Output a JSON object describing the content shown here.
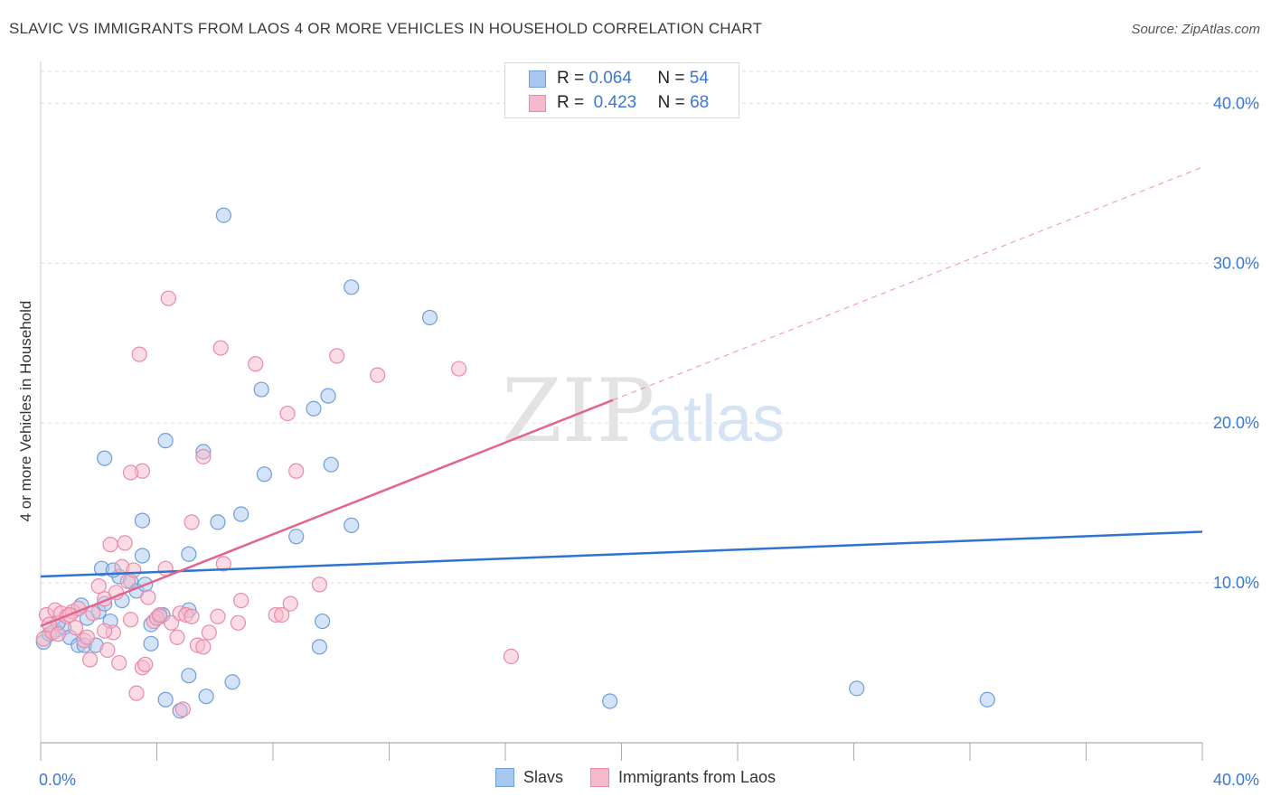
{
  "title": "SLAVIC VS IMMIGRANTS FROM LAOS 4 OR MORE VEHICLES IN HOUSEHOLD CORRELATION CHART",
  "source": "Source: ZipAtlas.com",
  "watermark": {
    "zip": "ZIP",
    "atlas": "atlas"
  },
  "legend_top": [
    {
      "r_label": "R =",
      "r_value": "0.064",
      "n_label": "N =",
      "n_value": "54"
    },
    {
      "r_label": "R =",
      "r_value": "0.423",
      "n_label": "N =",
      "n_value": "68"
    }
  ],
  "colors": {
    "slavs_fill": "#a9c8f0",
    "slavs_stroke": "#6e9fd8",
    "slavs_line": "#2f74cf",
    "laos_fill": "#f7b9cc",
    "laos_stroke": "#e98aa8",
    "laos_line": "#e4648e",
    "axis_text": "#3a78d4",
    "grid": "#dddddd"
  },
  "chart_data": {
    "type": "scatter",
    "title": "SLAVIC VS IMMIGRANTS FROM LAOS 4 OR MORE VEHICLES IN HOUSEHOLD CORRELATION CHART",
    "xlabel": "",
    "ylabel": "4 or more Vehicles in Household",
    "xlim": [
      0,
      40
    ],
    "ylim": [
      0,
      42
    ],
    "x_tick_labels": [
      "0.0%",
      "40.0%"
    ],
    "y_ticks": [
      10,
      20,
      30,
      40
    ],
    "y_tick_labels": [
      "10.0%",
      "20.0%",
      "30.0%",
      "40.0%"
    ],
    "grid": true,
    "legend_position": "top-center",
    "series": [
      {
        "name": "Slavs",
        "r": 0.064,
        "n": 54,
        "trend": {
          "x": [
            0,
            40
          ],
          "y": [
            10.4,
            13.2
          ],
          "dashed_extension": false
        },
        "points": [
          [
            0.1,
            6.3
          ],
          [
            0.3,
            6.8
          ],
          [
            0.5,
            7.0
          ],
          [
            0.8,
            7.2
          ],
          [
            1.0,
            6.6
          ],
          [
            1.3,
            6.1
          ],
          [
            1.4,
            8.6
          ],
          [
            1.6,
            7.8
          ],
          [
            1.5,
            6.1
          ],
          [
            2.0,
            8.2
          ],
          [
            2.2,
            8.7
          ],
          [
            2.4,
            7.6
          ],
          [
            2.7,
            10.4
          ],
          [
            2.8,
            8.9
          ],
          [
            3.1,
            10.1
          ],
          [
            3.8,
            6.2
          ],
          [
            2.1,
            10.9
          ],
          [
            2.5,
            10.8
          ],
          [
            3.3,
            9.5
          ],
          [
            3.6,
            9.9
          ],
          [
            3.8,
            7.4
          ],
          [
            4.2,
            8.0
          ],
          [
            5.1,
            8.3
          ],
          [
            4.3,
            2.7
          ],
          [
            4.8,
            2.0
          ],
          [
            5.1,
            4.2
          ],
          [
            5.7,
            2.9
          ],
          [
            6.6,
            3.8
          ],
          [
            5.1,
            11.8
          ],
          [
            3.5,
            11.7
          ],
          [
            2.2,
            17.8
          ],
          [
            3.5,
            13.9
          ],
          [
            4.3,
            18.9
          ],
          [
            5.6,
            18.2
          ],
          [
            6.1,
            13.8
          ],
          [
            6.9,
            14.3
          ],
          [
            7.6,
            22.1
          ],
          [
            7.7,
            16.8
          ],
          [
            8.8,
            12.9
          ],
          [
            9.4,
            20.9
          ],
          [
            9.9,
            21.7
          ],
          [
            10.0,
            17.4
          ],
          [
            10.7,
            13.6
          ],
          [
            10.7,
            28.5
          ],
          [
            13.4,
            26.6
          ],
          [
            6.3,
            33.0
          ],
          [
            9.6,
            6.0
          ],
          [
            9.7,
            7.6
          ],
          [
            19.6,
            2.6
          ],
          [
            28.1,
            3.4
          ],
          [
            32.6,
            2.7
          ],
          [
            0.6,
            7.5
          ],
          [
            1.9,
            6.1
          ],
          [
            4.1,
            7.9
          ]
        ]
      },
      {
        "name": "Immigrants from Laos",
        "r": 0.423,
        "n": 68,
        "trend": {
          "x": [
            0,
            40
          ],
          "y": [
            7.3,
            36.0
          ],
          "solid_until_x": 19.7,
          "dashed_extension": true
        },
        "points": [
          [
            0.1,
            6.5
          ],
          [
            0.2,
            8.0
          ],
          [
            0.4,
            6.9
          ],
          [
            0.5,
            8.3
          ],
          [
            0.7,
            8.1
          ],
          [
            0.9,
            7.9
          ],
          [
            1.1,
            8.2
          ],
          [
            1.2,
            7.2
          ],
          [
            1.3,
            8.4
          ],
          [
            1.5,
            6.4
          ],
          [
            1.6,
            6.6
          ],
          [
            1.7,
            5.2
          ],
          [
            1.8,
            8.1
          ],
          [
            2.0,
            9.8
          ],
          [
            2.2,
            9.0
          ],
          [
            2.3,
            5.8
          ],
          [
            2.4,
            12.4
          ],
          [
            2.5,
            6.9
          ],
          [
            2.6,
            9.4
          ],
          [
            2.7,
            5.0
          ],
          [
            2.8,
            11.0
          ],
          [
            2.9,
            12.5
          ],
          [
            3.0,
            10.1
          ],
          [
            3.1,
            7.7
          ],
          [
            3.2,
            10.8
          ],
          [
            3.3,
            3.1
          ],
          [
            3.5,
            4.7
          ],
          [
            3.6,
            4.9
          ],
          [
            3.7,
            9.1
          ],
          [
            3.9,
            7.6
          ],
          [
            4.0,
            7.8
          ],
          [
            4.1,
            8.0
          ],
          [
            4.3,
            10.9
          ],
          [
            4.5,
            7.5
          ],
          [
            4.7,
            6.6
          ],
          [
            4.8,
            8.1
          ],
          [
            5.0,
            8.0
          ],
          [
            5.2,
            7.9
          ],
          [
            5.4,
            6.1
          ],
          [
            5.6,
            6.0
          ],
          [
            5.8,
            6.9
          ],
          [
            6.1,
            7.9
          ],
          [
            6.3,
            11.2
          ],
          [
            6.8,
            7.5
          ],
          [
            6.9,
            8.9
          ],
          [
            8.1,
            8.0
          ],
          [
            8.6,
            8.7
          ],
          [
            8.8,
            17.0
          ],
          [
            9.6,
            9.9
          ],
          [
            10.2,
            24.2
          ],
          [
            11.6,
            23.0
          ],
          [
            14.4,
            23.4
          ],
          [
            16.2,
            5.4
          ],
          [
            8.5,
            20.6
          ],
          [
            7.4,
            23.7
          ],
          [
            6.2,
            24.7
          ],
          [
            4.4,
            27.8
          ],
          [
            3.4,
            24.3
          ],
          [
            3.5,
            17.0
          ],
          [
            5.6,
            17.9
          ],
          [
            5.2,
            13.8
          ],
          [
            3.1,
            16.9
          ],
          [
            0.3,
            7.4
          ],
          [
            0.6,
            6.8
          ],
          [
            1.0,
            8.0
          ],
          [
            4.9,
            2.1
          ],
          [
            2.2,
            7.0
          ],
          [
            8.3,
            8.0
          ]
        ]
      }
    ]
  },
  "legend_bottom": [
    {
      "label": "Slavs"
    },
    {
      "label": "Immigrants from Laos"
    }
  ]
}
